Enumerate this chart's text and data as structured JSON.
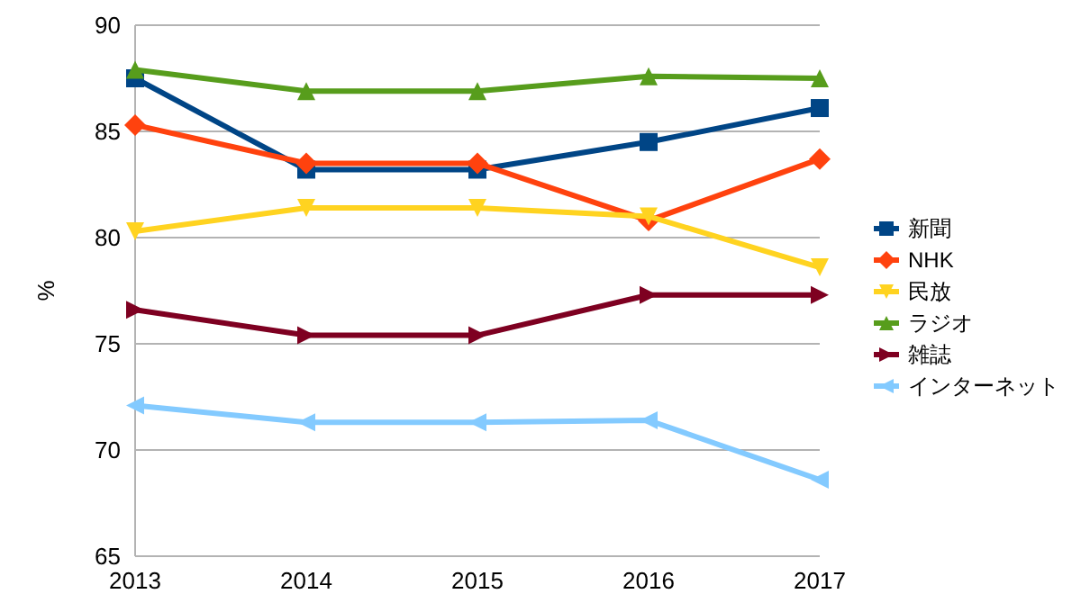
{
  "chart_data": {
    "type": "line",
    "ylabel": "%",
    "x": [
      2013,
      2014,
      2015,
      2016,
      2017
    ],
    "xlim": [
      2013,
      2017
    ],
    "xticks": [
      2013,
      2014,
      2015,
      2016,
      2017
    ],
    "ylim": [
      65,
      90
    ],
    "yticks": [
      65,
      70,
      75,
      80,
      85,
      90
    ],
    "grid": "y",
    "legend": "right",
    "series": [
      {
        "name": "新聞",
        "color": "#004586",
        "marker": "square",
        "values": [
          87.5,
          83.2,
          83.2,
          84.5,
          86.1
        ]
      },
      {
        "name": "NHK",
        "color": "#ff420e",
        "marker": "diamond",
        "values": [
          85.3,
          83.5,
          83.5,
          80.8,
          83.7
        ]
      },
      {
        "name": "民放",
        "color": "#ffd320",
        "marker": "triangle-down",
        "values": [
          80.3,
          81.4,
          81.4,
          81.0,
          78.6
        ]
      },
      {
        "name": "ラジオ",
        "color": "#579d1c",
        "marker": "triangle",
        "values": [
          87.9,
          86.9,
          86.9,
          87.6,
          87.5
        ]
      },
      {
        "name": "雑誌",
        "color": "#7e0021",
        "marker": "triangle-right",
        "values": [
          76.6,
          75.4,
          75.4,
          77.3,
          77.3
        ]
      },
      {
        "name": "インターネット",
        "color": "#83caff",
        "marker": "triangle-left",
        "values": [
          72.1,
          71.3,
          71.3,
          71.4,
          68.6
        ]
      }
    ]
  }
}
